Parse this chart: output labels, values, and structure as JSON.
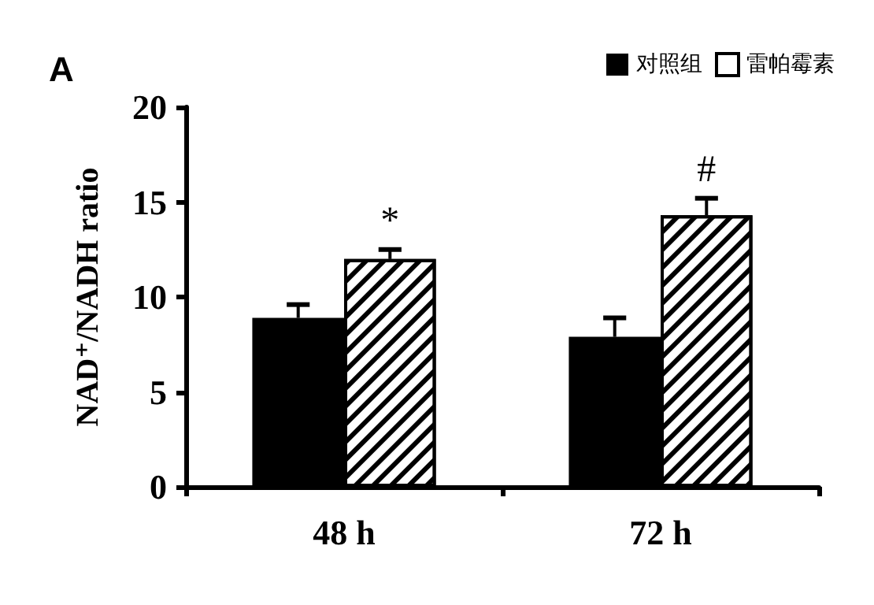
{
  "chart_data": {
    "type": "bar",
    "title": "A",
    "ylabel": "NAD⁺/NADH ratio",
    "categories": [
      "48 h",
      "72 h"
    ],
    "series": [
      {
        "name": "对照组",
        "color": "#000000",
        "values": [
          8.9,
          7.9
        ],
        "errors": [
          0.7,
          1.0
        ]
      },
      {
        "name": "雷帕霉素",
        "color": "#ffffff",
        "values": [
          12.0,
          14.3
        ],
        "errors": [
          0.5,
          0.9
        ]
      }
    ],
    "ylim": [
      0,
      20
    ],
    "yticks": [
      0,
      5,
      10,
      15,
      20
    ],
    "grid": false,
    "legend": "top right",
    "annotations": [
      "*",
      "#"
    ]
  }
}
